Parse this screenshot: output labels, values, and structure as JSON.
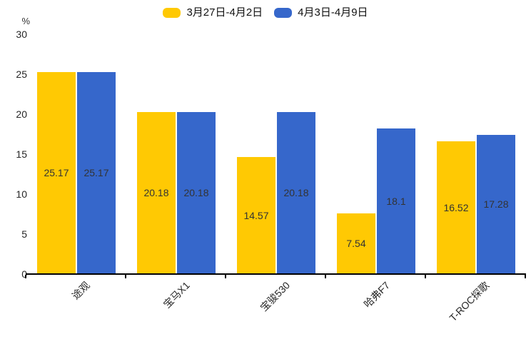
{
  "chart_data": {
    "type": "bar",
    "categories": [
      "途观",
      "宝马X1",
      "宝骏530",
      "哈弗F7",
      "T-ROC探歌"
    ],
    "series": [
      {
        "name": "3月27日-4月2日",
        "color": "#FFC903",
        "values": [
          25.17,
          20.18,
          14.57,
          7.54,
          16.52
        ]
      },
      {
        "name": "4月3日-4月9日",
        "color": "#3667CB",
        "values": [
          25.17,
          20.18,
          20.18,
          18.1,
          17.28
        ]
      }
    ],
    "title": "",
    "xlabel": "",
    "ylabel": "%",
    "ylim": [
      0,
      30
    ],
    "yticks": [
      0,
      5,
      10,
      15,
      20,
      25,
      30
    ],
    "grid": false,
    "legend_position": "top-center",
    "value_label_position": "inside-center",
    "axis_color": "#000000",
    "value_label_color": "#333333"
  }
}
